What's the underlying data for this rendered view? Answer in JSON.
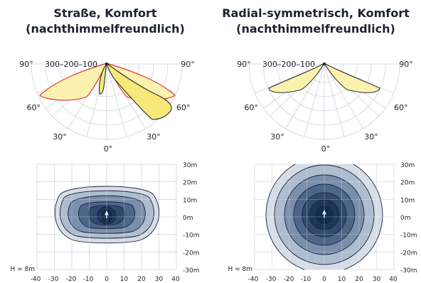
{
  "panels": [
    {
      "title_line1": "Straße, Komfort",
      "title_line2": "(nachthimmelfreundlich)",
      "polar_left_angle": "90°",
      "polar_right_angle": "90°",
      "polar_scale_label": "300–200–100",
      "polar_mid_left": "60°",
      "polar_mid_right": "60°",
      "polar_low_left": "30°",
      "polar_low_right": "30°",
      "polar_bottom": "0°"
    },
    {
      "title_line1": "Radial-symmetrisch, Komfort",
      "title_line2": "(nachthimmelfreundlich)",
      "polar_left_angle": "90°",
      "polar_right_angle": "90°",
      "polar_scale_label": "300–200–100",
      "polar_mid_left": "60°",
      "polar_mid_right": "60°",
      "polar_low_left": "30°",
      "polar_low_right": "30°",
      "polar_bottom": "0°"
    }
  ],
  "iso": {
    "y_ticks": [
      "30m",
      "20m",
      "10m",
      "0m",
      "-10m",
      "-20m",
      "-30m"
    ],
    "x_ticks": [
      "-40",
      "-30",
      "-20",
      "-10",
      "0",
      "10",
      "20",
      "30",
      "40"
    ],
    "height_label": "H = 8m"
  },
  "colors": {
    "polar_fill": "#fbf2b0",
    "polar_red": "#e0363a",
    "iso_dark": "#0e2c4d",
    "iso_light": "#d6dde7"
  }
}
